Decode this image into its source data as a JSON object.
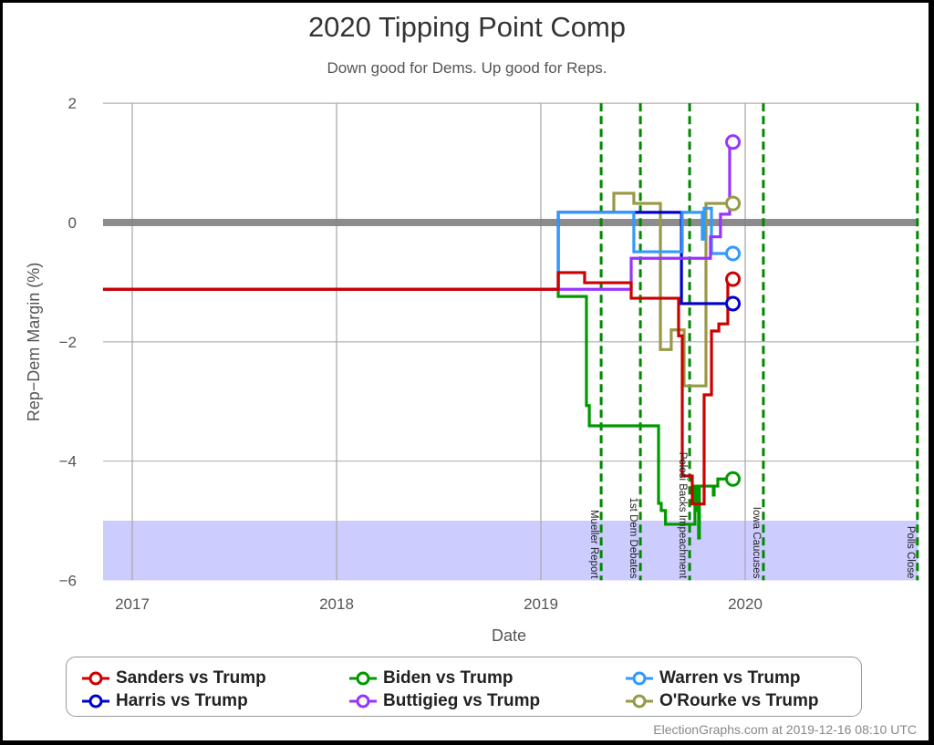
{
  "header": {
    "title": "2020 Tipping Point Comp",
    "subtitle": "Down good for Dems. Up good for Reps."
  },
  "footer": {
    "credit": "ElectionGraphs.com at 2019-12-16 08:10 UTC"
  },
  "chart_data": {
    "type": "line",
    "title": "2020 Tipping Point Comp",
    "subtitle": "Down good for Dems. Up good for Reps.",
    "xlabel": "Date",
    "ylabel": "Rep−Dem Margin (%)",
    "xlim": [
      2016.857,
      2020.847
    ],
    "ylim": [
      -6,
      2
    ],
    "grid": true,
    "legend_position": "bottom",
    "x_ticks": [
      {
        "value": 2017,
        "label": "2017"
      },
      {
        "value": 2018,
        "label": "2018"
      },
      {
        "value": 2019,
        "label": "2019"
      },
      {
        "value": 2020,
        "label": "2020"
      }
    ],
    "y_ticks": [
      {
        "value": 2,
        "label": "2"
      },
      {
        "value": 0,
        "label": "0"
      },
      {
        "value": -2,
        "label": "−2"
      },
      {
        "value": -4,
        "label": "−4"
      },
      {
        "value": -6,
        "label": "−6"
      }
    ],
    "reference_line": {
      "value": 0,
      "color": "#808080"
    },
    "shaded_band": {
      "from": -6,
      "to": -5,
      "color": "#ccccff"
    },
    "events": [
      {
        "label": "Mueller Report",
        "x": 2019.295
      },
      {
        "label": "1st Dem Debates",
        "x": 2019.487
      },
      {
        "label": "Pelosi Backs Impeachment",
        "x": 2019.728
      },
      {
        "label": "Iowa Caucuses",
        "x": 2020.089
      },
      {
        "label": "Polls Close",
        "x": 2020.843
      }
    ],
    "series": [
      {
        "name": "Sanders vs Trump",
        "color": "#cc0000",
        "final_value": -0.95,
        "points": [
          [
            2016.857,
            -1.12
          ],
          [
            2019.085,
            -0.84
          ],
          [
            2019.214,
            -1.01
          ],
          [
            2019.442,
            -1.27
          ],
          [
            2019.674,
            -1.9
          ],
          [
            2019.692,
            -4.25
          ],
          [
            2019.741,
            -4.72
          ],
          [
            2019.799,
            -2.89
          ],
          [
            2019.835,
            -1.82
          ],
          [
            2019.871,
            -1.7
          ],
          [
            2019.915,
            -0.95
          ]
        ],
        "end": 2019.94
      },
      {
        "name": "Harris vs Trump",
        "color": "#0000cc",
        "final_value": -1.36,
        "points": [
          [
            2016.857,
            -1.12
          ],
          [
            2019.085,
            0.17
          ],
          [
            2019.688,
            -1.36
          ]
        ],
        "end": 2019.94
      },
      {
        "name": "Biden vs Trump",
        "color": "#009900",
        "final_value": -4.3,
        "points": [
          [
            2016.857,
            -1.12
          ],
          [
            2019.085,
            -1.24
          ],
          [
            2019.223,
            -3.07
          ],
          [
            2019.237,
            -3.41
          ],
          [
            2019.576,
            -4.71
          ],
          [
            2019.589,
            -4.83
          ],
          [
            2019.61,
            -5.06
          ],
          [
            2019.754,
            -4.42
          ],
          [
            2019.762,
            -4.83
          ],
          [
            2019.772,
            -5.29
          ],
          [
            2019.776,
            -4.42
          ],
          [
            2019.844,
            -4.57
          ],
          [
            2019.848,
            -4.42
          ],
          [
            2019.866,
            -4.3
          ]
        ],
        "end": 2019.94
      },
      {
        "name": "Buttigieg vs Trump",
        "color": "#9933ff",
        "final_value": 1.35,
        "points": [
          [
            2016.857,
            -1.12
          ],
          [
            2019.442,
            -0.6
          ],
          [
            2019.83,
            -0.24
          ],
          [
            2019.879,
            0.14
          ],
          [
            2019.924,
            1.35
          ]
        ],
        "end": 2019.94
      },
      {
        "name": "Warren vs Trump",
        "color": "#3399ff",
        "final_value": -0.52,
        "points": [
          [
            2016.857,
            -1.12
          ],
          [
            2019.085,
            0.17
          ],
          [
            2019.455,
            -0.49
          ],
          [
            2019.692,
            0.17
          ],
          [
            2019.79,
            -0.28
          ],
          [
            2019.799,
            0.24
          ],
          [
            2019.835,
            -0.52
          ]
        ],
        "end": 2019.94
      },
      {
        "name": "O'Rourke vs Trump",
        "color": "#999944",
        "final_value": 0.32,
        "points": [
          [
            2016.857,
            -1.12
          ],
          [
            2019.085,
            0.17
          ],
          [
            2019.357,
            0.49
          ],
          [
            2019.455,
            0.32
          ],
          [
            2019.585,
            -2.13
          ],
          [
            2019.638,
            -1.8
          ],
          [
            2019.701,
            -2.74
          ],
          [
            2019.808,
            0.32
          ]
        ],
        "end": 2019.94
      }
    ]
  }
}
